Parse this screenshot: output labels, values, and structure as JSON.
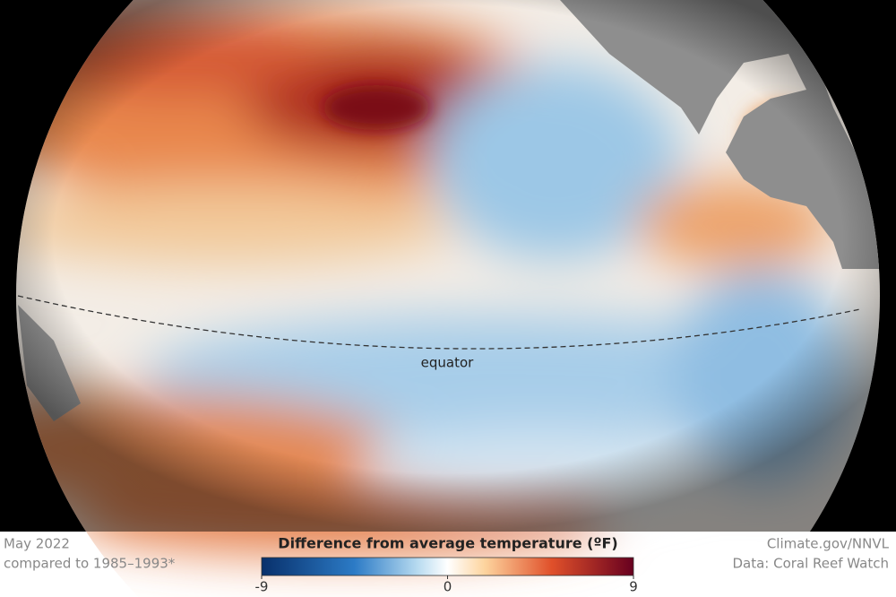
{
  "caption": {
    "date": "May 2022",
    "baseline": "compared to 1985–1993*",
    "credit": "Climate.gov/NNVL",
    "source": "Data: Coral Reef Watch"
  },
  "map": {
    "equator_label": "equator"
  },
  "legend": {
    "title": "Difference from average temperature (ºF)",
    "range": [
      -9,
      9
    ],
    "ticks": [
      -9,
      0,
      9
    ]
  }
}
